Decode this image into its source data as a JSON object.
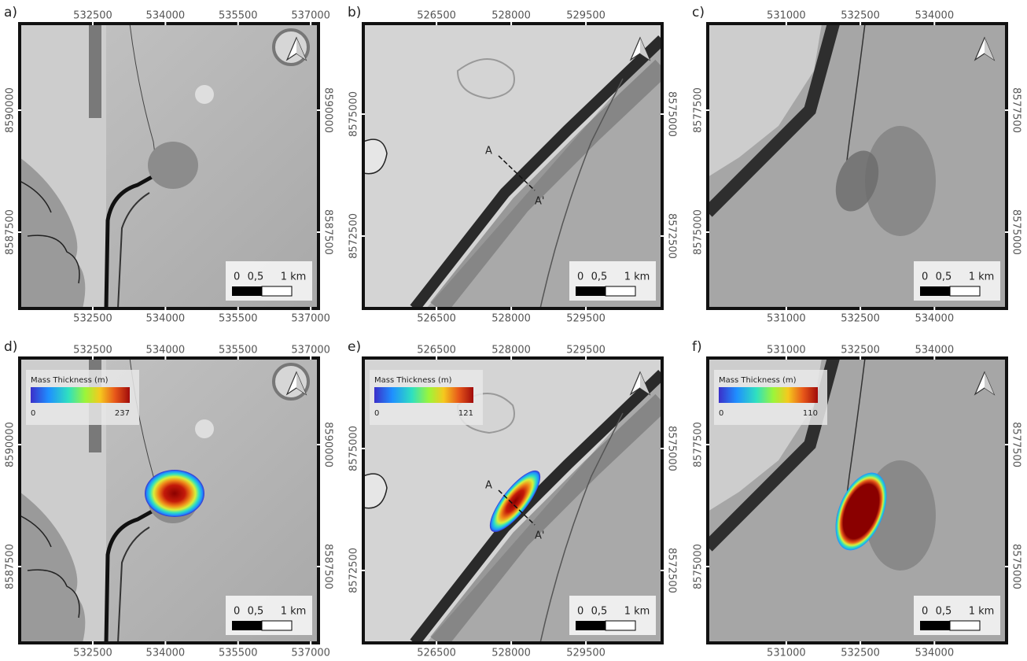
{
  "panels": [
    {
      "label": "a)",
      "xlim": [
        530990,
        537160
      ],
      "ylim": [
        8585935,
        8591775
      ],
      "xticks": [
        532500,
        534000,
        535500,
        537000
      ],
      "yticks": [
        8590000,
        8587500
      ],
      "scale_labels": [
        "0",
        "0,5",
        "1 km"
      ]
    },
    {
      "label": "b)",
      "xlim": [
        525030,
        531030
      ],
      "ylim": [
        8571015,
        8576855
      ],
      "xticks": [
        526500,
        528000,
        529500
      ],
      "yticks": [
        8575000,
        8572500
      ],
      "scale_labels": [
        "0",
        "0,5",
        "1 km"
      ],
      "profile": [
        "A",
        "A'"
      ]
    },
    {
      "label": "c)",
      "xlim": [
        529410,
        535460
      ],
      "ylim": [
        8573435,
        8579275
      ],
      "xticks": [
        531000,
        532500,
        534000
      ],
      "yticks": [
        8577500,
        8575000
      ],
      "scale_labels": [
        "0",
        "0,5",
        "1 km"
      ]
    },
    {
      "label": "d)",
      "xlim": [
        530990,
        537160
      ],
      "ylim": [
        8585935,
        8591775
      ],
      "xticks": [
        532500,
        534000,
        535500,
        537000
      ],
      "yticks": [
        8590000,
        8587500
      ],
      "scale_labels": [
        "0",
        "0,5",
        "1 km"
      ],
      "legend": {
        "title": "Mass Thickness (m)",
        "min": 0,
        "max": 237
      }
    },
    {
      "label": "e)",
      "xlim": [
        525030,
        531030
      ],
      "ylim": [
        8571015,
        8576855
      ],
      "xticks": [
        526500,
        528000,
        529500
      ],
      "yticks": [
        8575000,
        8572500
      ],
      "scale_labels": [
        "0",
        "0,5",
        "1 km"
      ],
      "profile": [
        "A",
        "A'"
      ],
      "legend": {
        "title": "Mass Thickness (m)",
        "min": 0,
        "max": 121
      }
    },
    {
      "label": "f)",
      "xlim": [
        529410,
        535460
      ],
      "ylim": [
        8573435,
        8579275
      ],
      "xticks": [
        531000,
        532500,
        534000
      ],
      "yticks": [
        8577500,
        8575000
      ],
      "scale_labels": [
        "0",
        "0,5",
        "1 km"
      ],
      "legend": {
        "title": "Mass Thickness (m)",
        "min": 0,
        "max": 110
      }
    }
  ]
}
